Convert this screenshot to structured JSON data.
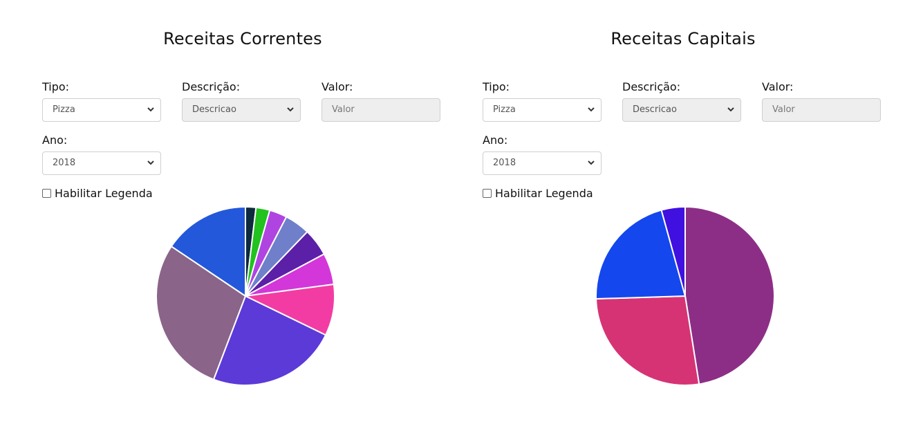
{
  "charts": [
    {
      "title": "Receitas Correntes",
      "fields": {
        "tipo_label": "Tipo:",
        "tipo_value": "Pizza",
        "descricao_label": "Descrição:",
        "descricao_value": "Descricao",
        "valor_label": "Valor:",
        "valor_placeholder": "Valor",
        "ano_label": "Ano:",
        "ano_value": "2018"
      },
      "legend_checkbox": {
        "label": "Habilitar Legenda",
        "checked": false
      }
    },
    {
      "title": "Receitas Capitais",
      "fields": {
        "tipo_label": "Tipo:",
        "tipo_value": "Pizza",
        "descricao_label": "Descrição:",
        "descricao_value": "Descricao",
        "valor_label": "Valor:",
        "valor_placeholder": "Valor",
        "ano_label": "Ano:",
        "ano_value": "2018"
      },
      "legend_checkbox": {
        "label": "Habilitar Legenda",
        "checked": false
      }
    }
  ],
  "chart_data": [
    {
      "type": "pie",
      "title": "Receitas Correntes",
      "legend": "hidden",
      "slices": [
        {
          "value": 1.9,
          "color": "#0d2a3e"
        },
        {
          "value": 2.5,
          "color": "#22c21f"
        },
        {
          "value": 3.2,
          "color": "#b044e0"
        },
        {
          "value": 4.6,
          "color": "#6f7fc9"
        },
        {
          "value": 5.0,
          "color": "#5c1fa8"
        },
        {
          "value": 5.7,
          "color": "#d337d9"
        },
        {
          "value": 9.3,
          "color": "#f23ca4"
        },
        {
          "value": 23.6,
          "color": "#5b3ad8"
        },
        {
          "value": 28.6,
          "color": "#8b6489"
        },
        {
          "value": 15.6,
          "color": "#2358db"
        }
      ]
    },
    {
      "type": "pie",
      "title": "Receitas Capitais",
      "legend": "hidden",
      "slices": [
        {
          "value": 47.5,
          "color": "#8d2e86"
        },
        {
          "value": 27.0,
          "color": "#d63375"
        },
        {
          "value": 21.2,
          "color": "#1447ed"
        },
        {
          "value": 4.3,
          "color": "#3f10e0"
        }
      ]
    }
  ]
}
